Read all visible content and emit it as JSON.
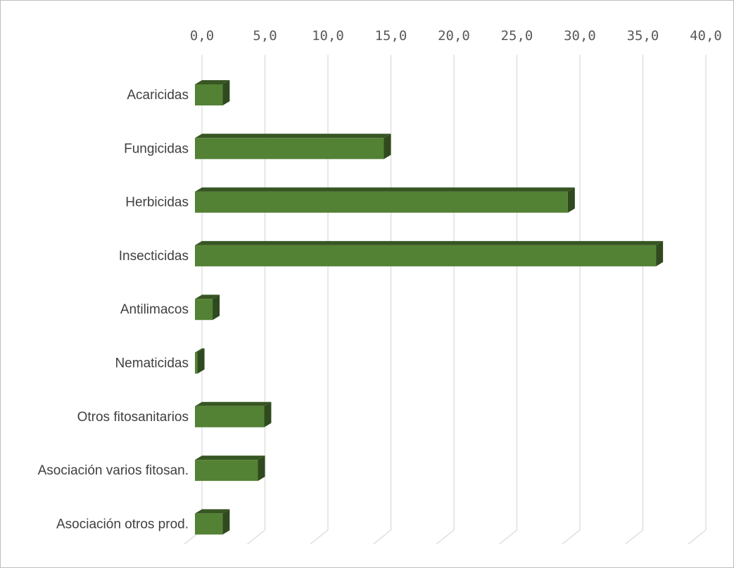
{
  "chart_data": {
    "type": "bar",
    "orientation": "horizontal",
    "style": "3d",
    "categories": [
      "Acaricidas",
      "Fungicidas",
      "Herbicidas",
      "Insecticidas",
      "Antilimacos",
      "Nematicidas",
      "Otros fitosanitarios",
      "Asociación varios fitosan.",
      "Asociación otros prod."
    ],
    "values": [
      2.2,
      15.0,
      29.6,
      36.6,
      1.4,
      0.2,
      5.5,
      5.0,
      2.2
    ],
    "xlim": [
      0,
      40
    ],
    "xticks": [
      "0,0",
      "5,0",
      "10,0",
      "15,0",
      "20,0",
      "25,0",
      "30,0",
      "35,0",
      "40,0"
    ],
    "axis_position": "top",
    "grid": true,
    "legend": "none",
    "colors": {
      "front": "#548235",
      "top": "#375623",
      "side": "#2f4a1e",
      "grid": "#d9d9d9",
      "border": "#bfbfbf"
    }
  }
}
